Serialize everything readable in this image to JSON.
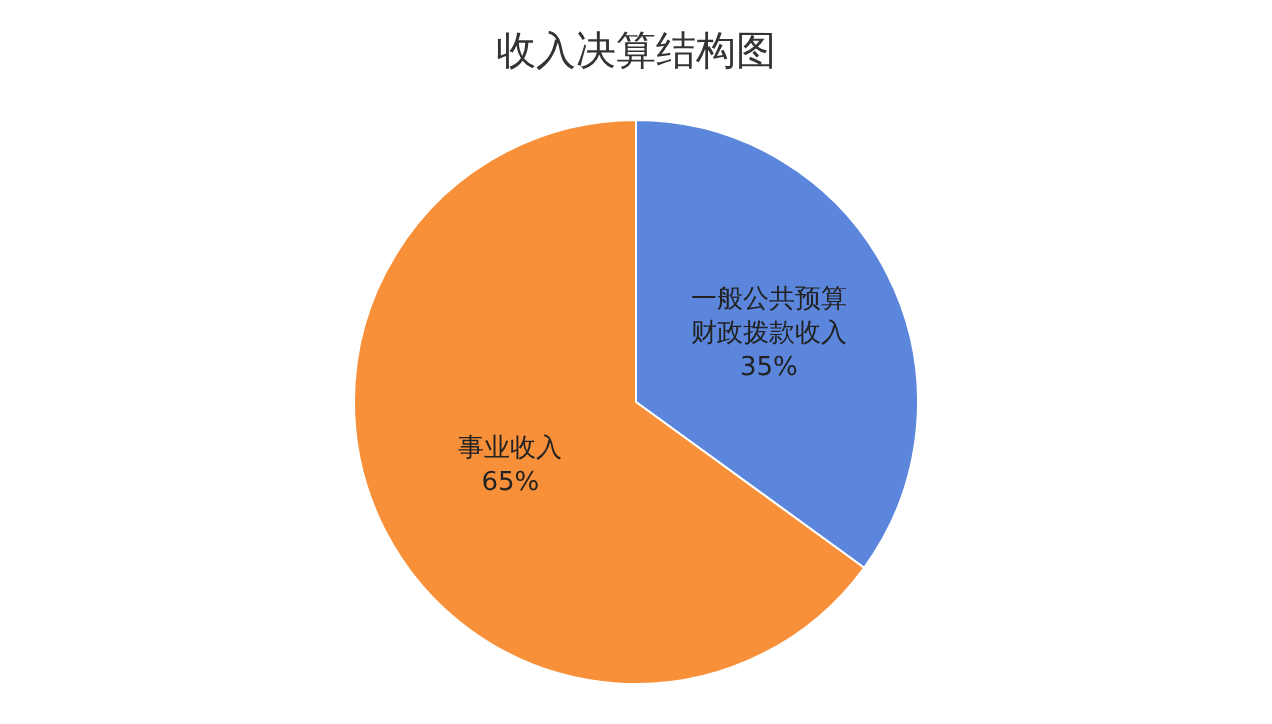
{
  "chart_data": {
    "type": "pie",
    "title": "收入决算结构图",
    "categories": [
      "一般公共预算财政拨款收入",
      "事业收入"
    ],
    "values": [
      35,
      65
    ],
    "value_labels": [
      "35%",
      "65%"
    ],
    "colors": [
      "#5b86dc",
      "#f8903a"
    ],
    "legend": false
  }
}
